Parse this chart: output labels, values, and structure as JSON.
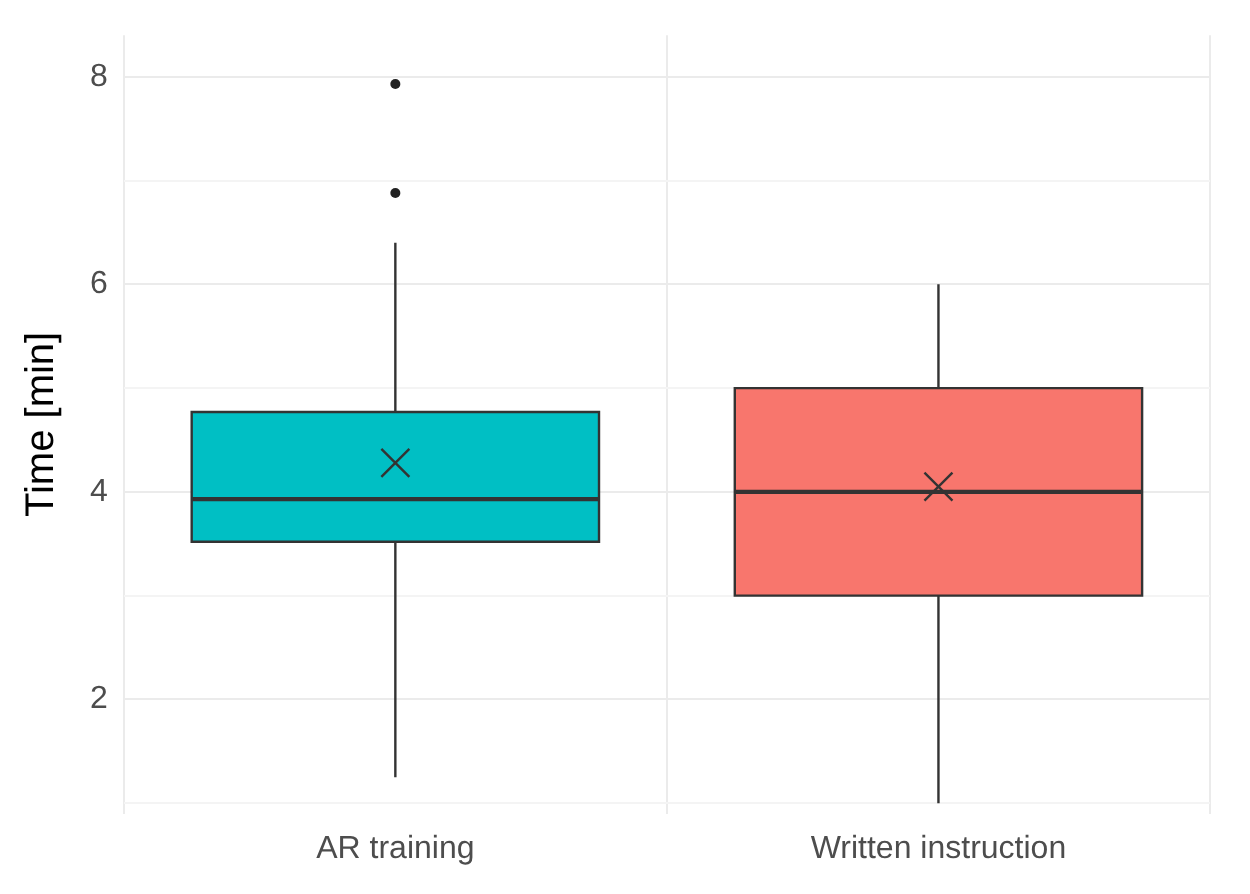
{
  "chart_data": {
    "type": "box",
    "categories": [
      "AR training",
      "Written instruction"
    ],
    "ylabel": "Time [min]",
    "ylim": [
      0.9,
      8.4
    ],
    "yticks": [
      {
        "value": 1,
        "label": null
      },
      2,
      {
        "value": 3,
        "label": null
      },
      4,
      {
        "value": 5,
        "label": null
      },
      6,
      {
        "value": 7,
        "label": null
      },
      8
    ],
    "grid": true,
    "legend": false,
    "colors": [
      "#00bfc4",
      "#f8766d"
    ],
    "boxes": [
      {
        "low": 1.25,
        "q1": 3.52,
        "median": 3.93,
        "q3": 4.77,
        "high": 6.4,
        "mean": 4.28,
        "outliers": [
          6.88,
          7.93
        ]
      },
      {
        "low": 1.0,
        "q1": 3.0,
        "median": 4.0,
        "q3": 5.0,
        "high": 6.0,
        "mean": 4.05
      }
    ]
  }
}
